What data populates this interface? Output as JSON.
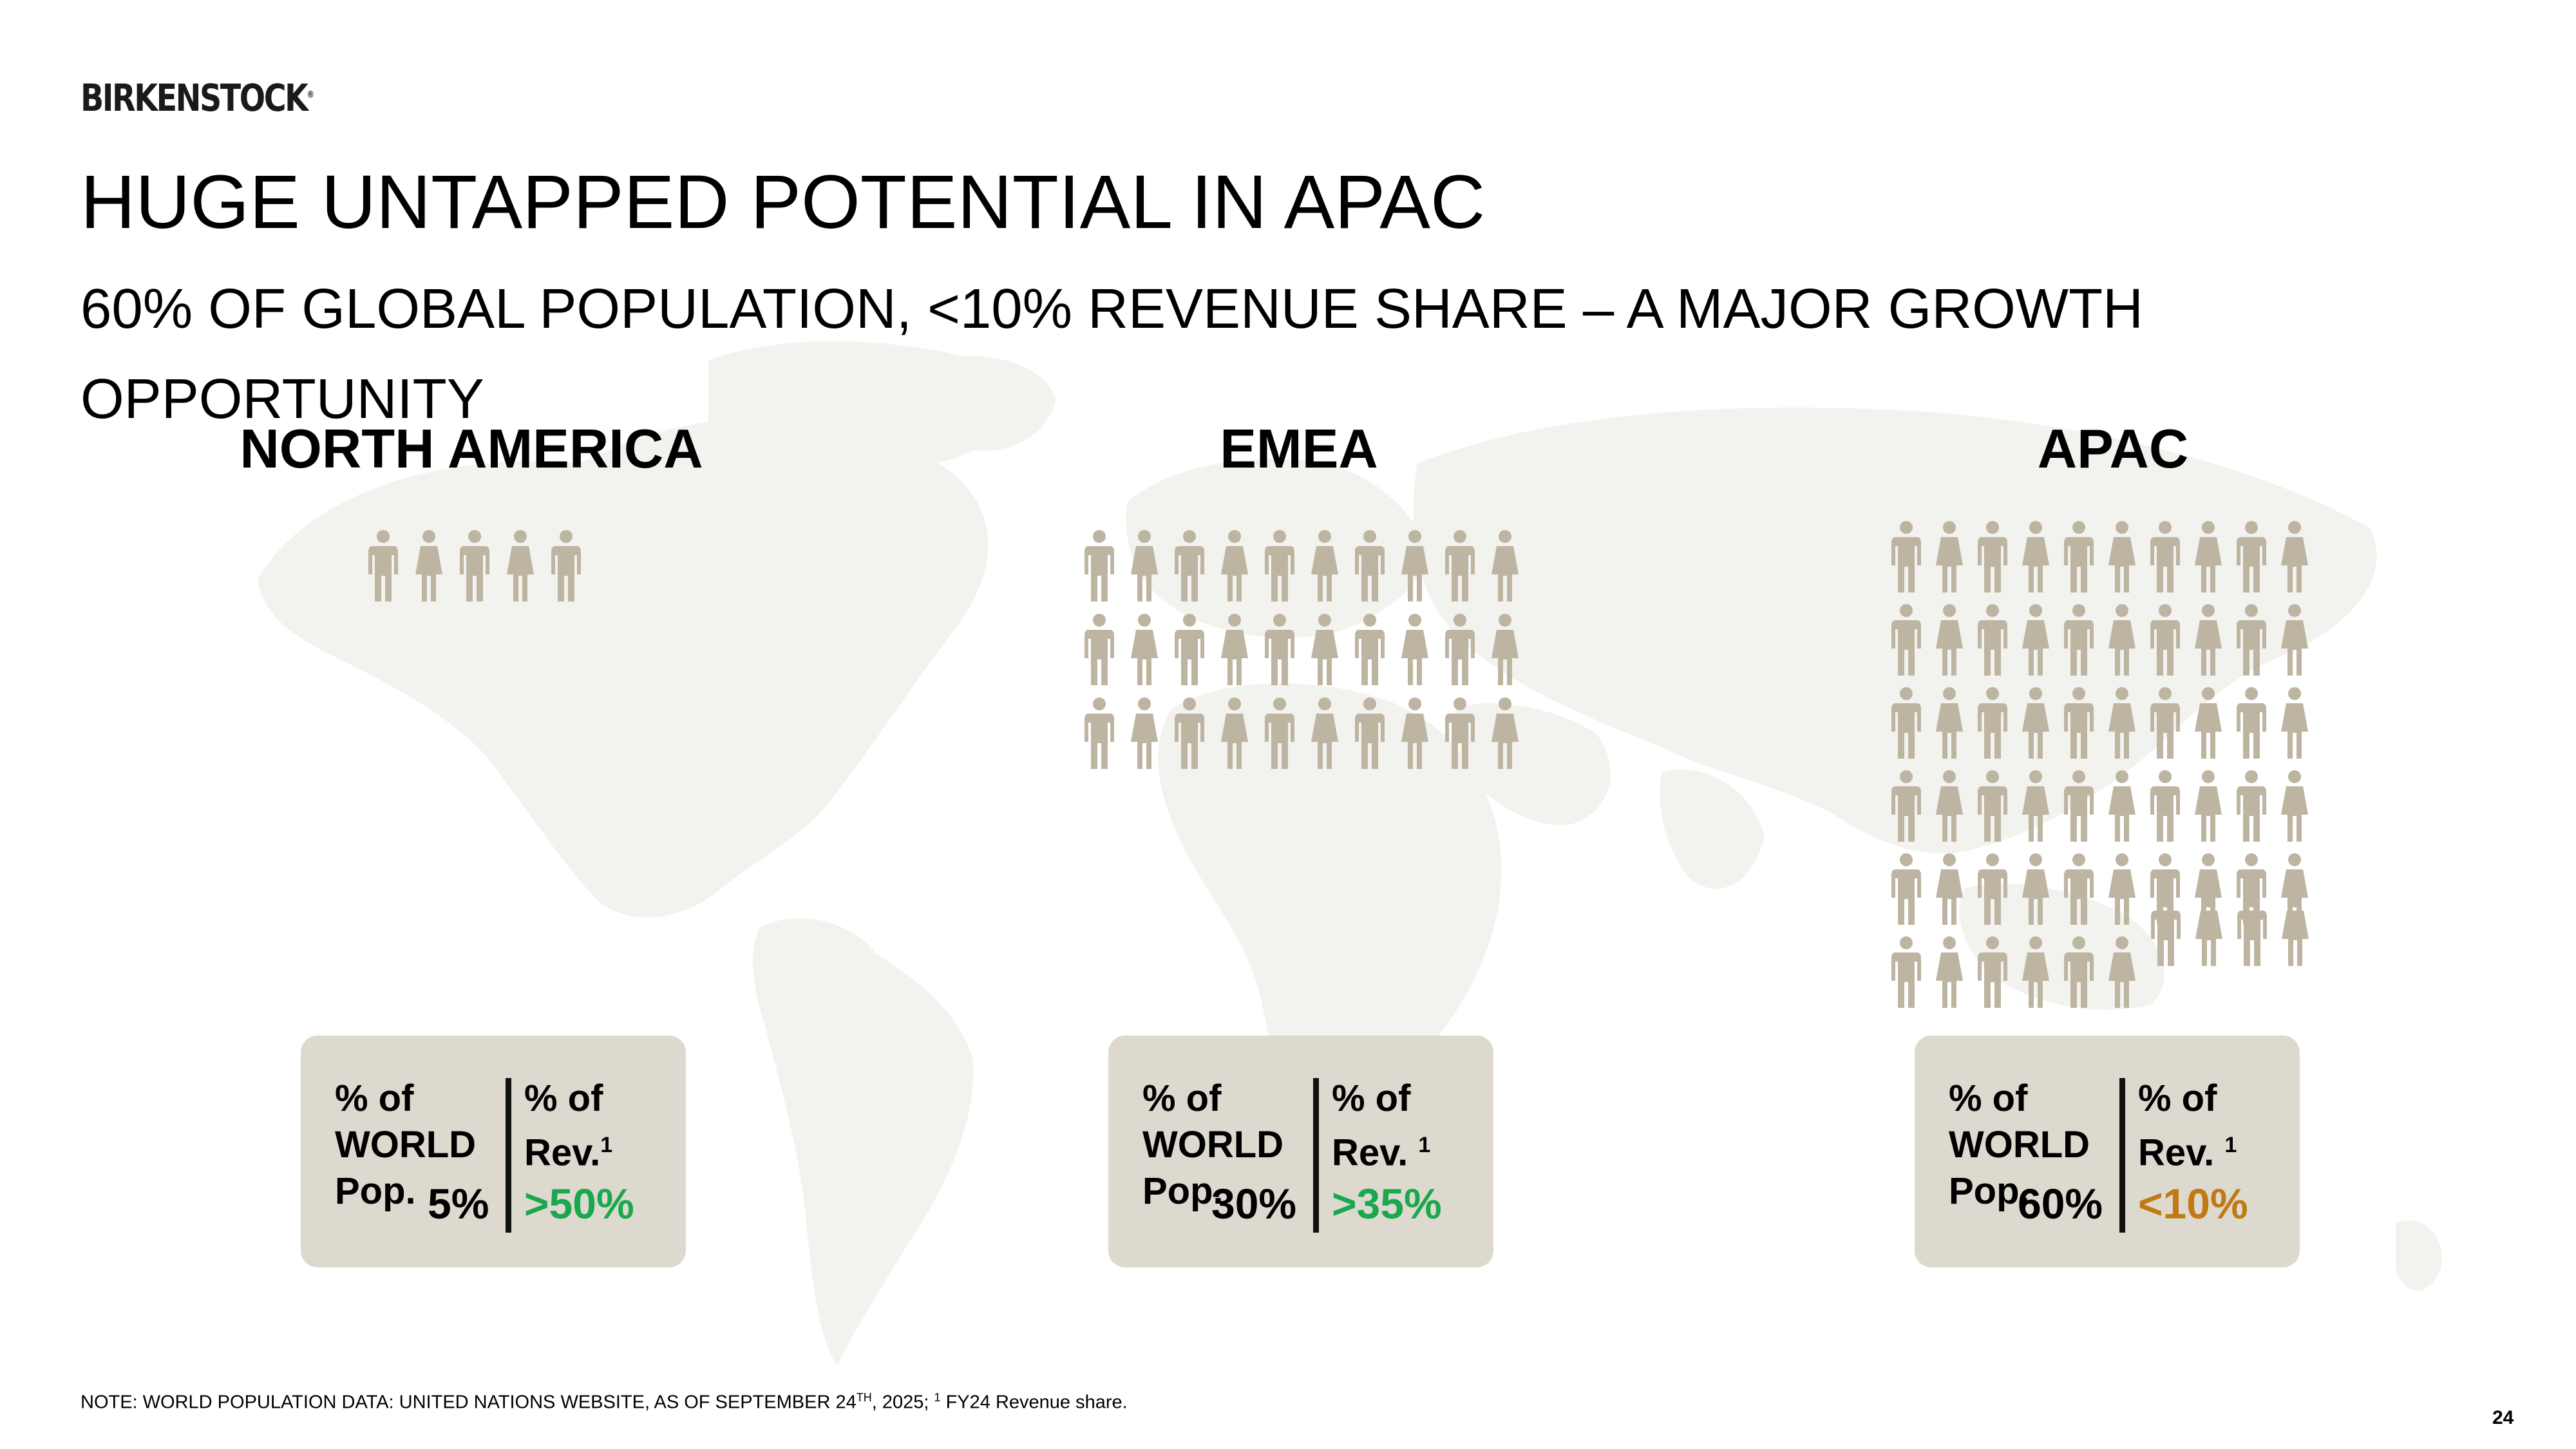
{
  "brand": {
    "logo_text": "BIRKENSTOCK",
    "logo_mark": "®"
  },
  "header": {
    "title": "HUGE UNTAPPED POTENTIAL IN APAC",
    "subtitle": "60% OF GLOBAL POPULATION, <10% REVENUE SHARE – A MAJOR GROWTH OPPORTUNITY"
  },
  "colors": {
    "person": "#bdb5a1",
    "card": "#ddd9cf",
    "map": "#f2f2ee",
    "green": "#1aa84e",
    "orange": "#c07a14"
  },
  "regions": [
    {
      "name": "NORTH AMERICA",
      "person_icons": 5,
      "pop_label_1": "% of",
      "pop_label_2": "WORLD",
      "pop_label_3": "Pop.",
      "rev_label_1": "% of",
      "rev_label_2": "Rev.",
      "rev_footnote": "1",
      "pop_value": "5%",
      "rev_value": ">50%",
      "rev_color": "green"
    },
    {
      "name": "EMEA",
      "person_icons": 30,
      "pop_label_1": "% of",
      "pop_label_2": "WORLD",
      "pop_label_3": "Pop.",
      "rev_label_1": "% of",
      "rev_label_2": "Rev. ",
      "rev_footnote": "1",
      "pop_value": "30%",
      "rev_value": ">35%",
      "rev_color": "green"
    },
    {
      "name": "APAC",
      "person_icons": 60,
      "pop_label_1": "% of",
      "pop_label_2": "WORLD",
      "pop_label_3": "Pop.",
      "rev_label_1": "% of",
      "rev_label_2": "Rev. ",
      "rev_footnote": "1",
      "pop_value": "60%",
      "rev_value": "<10%",
      "rev_color": "orange"
    }
  ],
  "footer": {
    "note_a": "NOTE: WORLD POPULATION DATA: UNITED NATIONS WEBSITE, AS OF SEPTEMBER 24",
    "note_sup": "TH",
    "note_b": ", 2025; ",
    "note_sup2": "1",
    "note_c": " FY24 Revenue share.",
    "page_number": "24"
  }
}
